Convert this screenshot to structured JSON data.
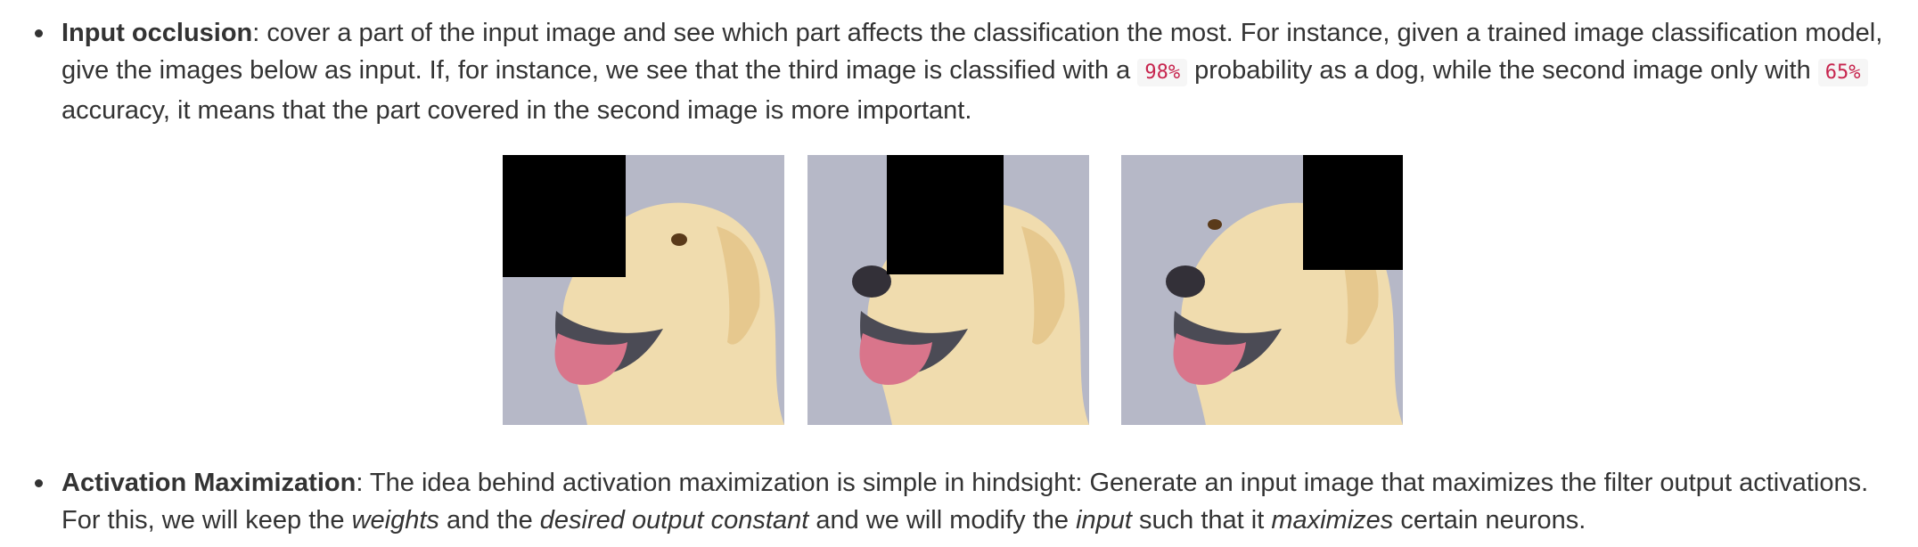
{
  "occlusion": {
    "term": "Input occlusion",
    "text1": ": cover a part of the input image and see which part affects the classification the most. For instance, given a trained image classification model, give the images below as input. If, for instance, we see that the third image is classified with a ",
    "code1": "98%",
    "text2": " probability as a dog, while the second image only with ",
    "code2": "65%",
    "text3": " accuracy, it means that the part covered in the second image is more important."
  },
  "activation": {
    "term": "Activation Maximization",
    "text1": ": The idea behind activation maximization is simple in hindsight: Generate an input image that maximizes the filter output activations. For this, we will keep the ",
    "em1": "weights",
    "text2": " and the ",
    "em2": "desired output constant",
    "text3": " and we will modify the ",
    "em3": "input",
    "text4": " such that it ",
    "em4": "maximizes",
    "text5": " certain neurons."
  },
  "colors": {
    "background": "#b6b8c7",
    "fur": "#f0dcae",
    "tongue": "#d9758b",
    "occluder": "#000000",
    "code_text": "#c7254e"
  }
}
